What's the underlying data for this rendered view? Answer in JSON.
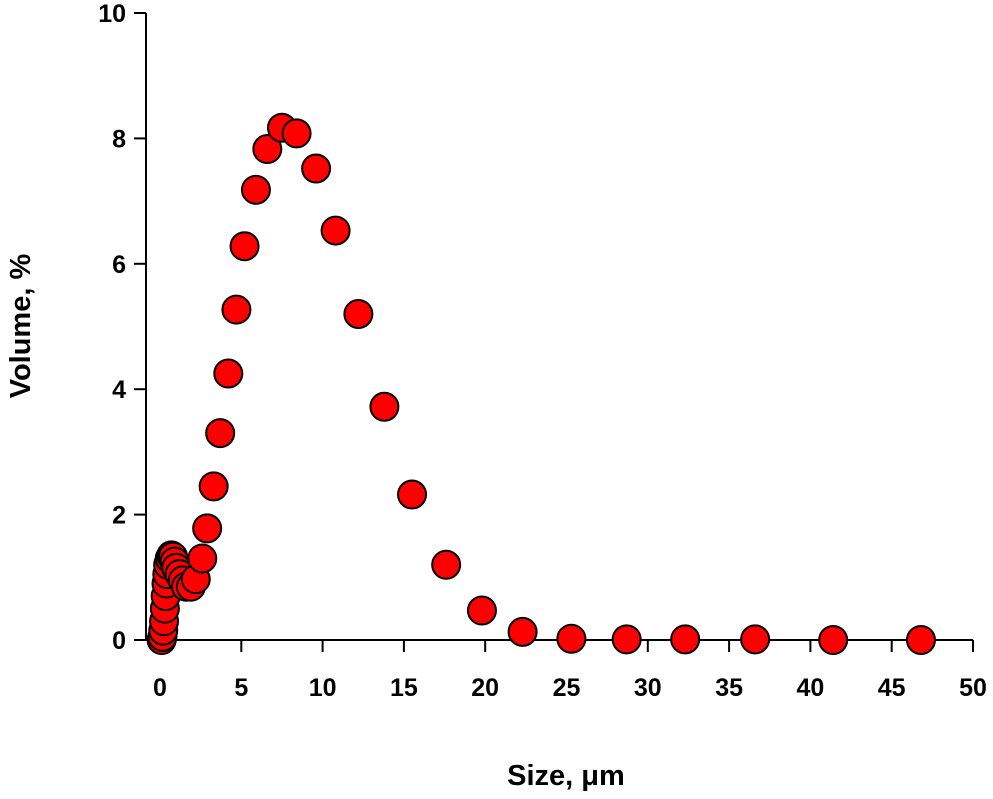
{
  "chart_data": {
    "type": "scatter",
    "x_label": "Size, μm",
    "y_label": "Volume, %",
    "xlim": [
      0,
      50
    ],
    "ylim": [
      0,
      10
    ],
    "xticks": [
      0,
      5,
      10,
      15,
      20,
      25,
      30,
      35,
      40,
      45,
      50
    ],
    "yticks": [
      0,
      2,
      4,
      6,
      8,
      10
    ],
    "color": "#ff0000",
    "x": [
      0.1,
      0.15,
      0.2,
      0.25,
      0.3,
      0.35,
      0.4,
      0.45,
      0.5,
      0.6,
      0.7,
      0.8,
      0.9,
      1.0,
      1.2,
      1.4,
      1.6,
      1.9,
      2.2,
      2.6,
      2.9,
      3.3,
      3.7,
      4.2,
      4.7,
      5.2,
      5.9,
      6.6,
      7.5,
      8.4,
      9.6,
      10.8,
      12.2,
      13.8,
      15.5,
      17.6,
      19.8,
      22.3,
      25.3,
      28.7,
      32.3,
      36.6,
      41.4,
      46.8
    ],
    "values": [
      0.0,
      0.05,
      0.15,
      0.3,
      0.5,
      0.7,
      0.9,
      1.05,
      1.2,
      1.3,
      1.35,
      1.33,
      1.25,
      1.15,
      1.05,
      0.95,
      0.85,
      0.85,
      0.97,
      1.3,
      1.78,
      2.45,
      3.3,
      4.25,
      5.27,
      6.28,
      7.18,
      7.83,
      8.17,
      8.08,
      7.52,
      6.53,
      5.2,
      3.72,
      2.32,
      1.2,
      0.47,
      0.13,
      0.02,
      0.01,
      0.01,
      0.01,
      0.0,
      0.0
    ]
  }
}
